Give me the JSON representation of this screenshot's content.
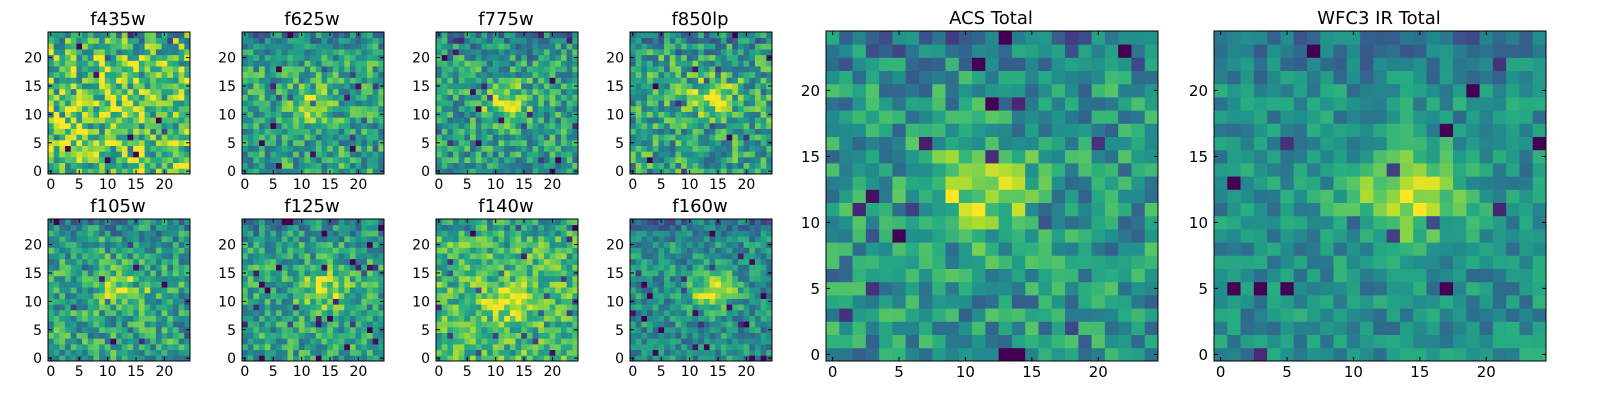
{
  "chart_data": [
    {
      "type": "heatmap",
      "title": "f435w",
      "grid_size": 25,
      "xlim": [
        0,
        24
      ],
      "ylim": [
        0,
        24
      ],
      "x_ticks": [
        0,
        5,
        10,
        15,
        20
      ],
      "y_ticks": [
        0,
        5,
        10,
        15,
        20
      ],
      "colormap": "viridis",
      "peak": {
        "x": 12,
        "y": 12
      },
      "peak_strength": 0.05,
      "noise": 0.32,
      "base": 0.72,
      "seed": 11,
      "grid": false
    },
    {
      "type": "heatmap",
      "title": "f625w",
      "grid_size": 25,
      "xlim": [
        0,
        24
      ],
      "ylim": [
        0,
        24
      ],
      "x_ticks": [
        0,
        5,
        10,
        15,
        20
      ],
      "y_ticks": [
        0,
        5,
        10,
        15,
        20
      ],
      "colormap": "viridis",
      "peak": {
        "x": 11,
        "y": 12
      },
      "peak_strength": 0.28,
      "noise": 0.24,
      "base": 0.58,
      "seed": 23,
      "grid": false
    },
    {
      "type": "heatmap",
      "title": "f775w",
      "grid_size": 25,
      "xlim": [
        0,
        24
      ],
      "ylim": [
        0,
        24
      ],
      "x_ticks": [
        0,
        5,
        10,
        15,
        20
      ],
      "y_ticks": [
        0,
        5,
        10,
        15,
        20
      ],
      "colormap": "viridis",
      "peak": {
        "x": 12,
        "y": 12
      },
      "peak_strength": 0.34,
      "noise": 0.24,
      "base": 0.56,
      "seed": 37,
      "grid": false
    },
    {
      "type": "heatmap",
      "title": "f850lp",
      "grid_size": 25,
      "xlim": [
        0,
        24
      ],
      "ylim": [
        0,
        24
      ],
      "x_ticks": [
        0,
        5,
        10,
        15,
        20
      ],
      "y_ticks": [
        0,
        5,
        10,
        15,
        20
      ],
      "colormap": "viridis",
      "peak": {
        "x": 14,
        "y": 13
      },
      "peak_strength": 0.3,
      "noise": 0.26,
      "base": 0.58,
      "seed": 41,
      "grid": false
    },
    {
      "type": "heatmap",
      "title": "f105w",
      "grid_size": 25,
      "xlim": [
        0,
        24
      ],
      "ylim": [
        0,
        24
      ],
      "x_ticks": [
        0,
        5,
        10,
        15,
        20
      ],
      "y_ticks": [
        0,
        5,
        10,
        15,
        20
      ],
      "colormap": "viridis",
      "peak": {
        "x": 13,
        "y": 12
      },
      "peak_strength": 0.3,
      "noise": 0.24,
      "base": 0.58,
      "seed": 53,
      "grid": false
    },
    {
      "type": "heatmap",
      "title": "f125w",
      "grid_size": 25,
      "xlim": [
        0,
        24
      ],
      "ylim": [
        0,
        24
      ],
      "x_ticks": [
        0,
        5,
        10,
        15,
        20
      ],
      "y_ticks": [
        0,
        5,
        10,
        15,
        20
      ],
      "colormap": "viridis",
      "peak": {
        "x": 14,
        "y": 12
      },
      "peak_strength": 0.32,
      "noise": 0.22,
      "base": 0.58,
      "seed": 67,
      "grid": false
    },
    {
      "type": "heatmap",
      "title": "f140w",
      "grid_size": 25,
      "xlim": [
        0,
        24
      ],
      "ylim": [
        0,
        24
      ],
      "x_ticks": [
        0,
        5,
        10,
        15,
        20
      ],
      "y_ticks": [
        0,
        5,
        10,
        15,
        20
      ],
      "colormap": "viridis",
      "peak": {
        "x": 12,
        "y": 10
      },
      "peak_strength": 0.24,
      "noise": 0.22,
      "base": 0.68,
      "seed": 71,
      "grid": false
    },
    {
      "type": "heatmap",
      "title": "f160w",
      "grid_size": 25,
      "xlim": [
        0,
        24
      ],
      "ylim": [
        0,
        24
      ],
      "x_ticks": [
        0,
        5,
        10,
        15,
        20
      ],
      "y_ticks": [
        0,
        5,
        10,
        15,
        20
      ],
      "colormap": "viridis",
      "peak": {
        "x": 14,
        "y": 12
      },
      "peak_strength": 0.4,
      "noise": 0.2,
      "base": 0.5,
      "seed": 83,
      "grid": false
    },
    {
      "type": "heatmap",
      "title": "ACS Total",
      "grid_size": 25,
      "xlim": [
        0,
        24
      ],
      "ylim": [
        0,
        24
      ],
      "x_ticks": [
        0,
        5,
        10,
        15,
        20
      ],
      "y_ticks": [
        0,
        5,
        10,
        15,
        20
      ],
      "colormap": "viridis",
      "peak": {
        "x": 11,
        "y": 12
      },
      "peak_strength": 0.38,
      "noise": 0.22,
      "base": 0.52,
      "seed": 97,
      "grid": false
    },
    {
      "type": "heatmap",
      "title": "WFC3 IR Total",
      "grid_size": 25,
      "xlim": [
        0,
        24
      ],
      "ylim": [
        0,
        24
      ],
      "x_ticks": [
        0,
        5,
        10,
        15,
        20
      ],
      "y_ticks": [
        0,
        5,
        10,
        15,
        20
      ],
      "colormap": "viridis",
      "peak": {
        "x": 14,
        "y": 12
      },
      "peak_strength": 0.45,
      "noise": 0.16,
      "base": 0.5,
      "seed": 103,
      "grid": false
    }
  ]
}
